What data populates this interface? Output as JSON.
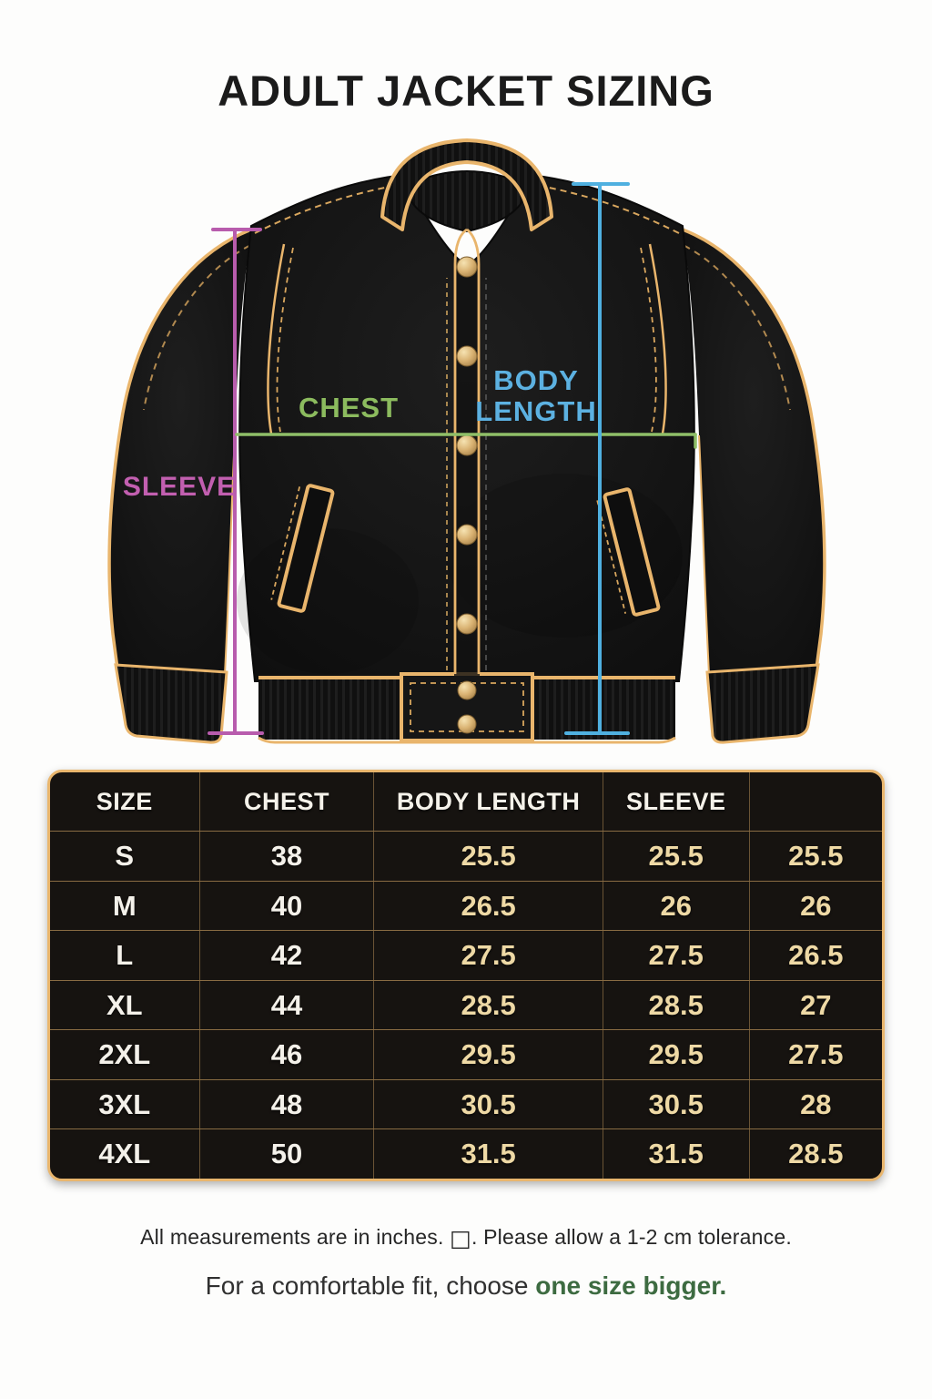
{
  "title": "ADULT JACKET SIZING",
  "diagram": {
    "labels": {
      "chest": "CHEST",
      "body_length_line1": "BODY",
      "body_length_line2": "LENGTH",
      "sleeve": "SLEEVE"
    },
    "colors": {
      "chest_line": "#8fbf68",
      "chest_label": "#8cbb5e",
      "body_length_line": "#4fb0e0",
      "body_length_label": "#5cb1e1",
      "sleeve_line": "#b85cad",
      "sleeve_label": "#c25fb0",
      "jacket": "#151515",
      "piping_gold": "#e9b56c"
    }
  },
  "table": {
    "headers": [
      "SIZE",
      "CHEST",
      "BODY LENGTH",
      "SLEEVE",
      ""
    ],
    "rows": [
      {
        "cells": [
          "S",
          "38",
          "25.5",
          "25.5",
          "25.5"
        ]
      },
      {
        "cells": [
          "M",
          "40",
          "26.5",
          "26",
          "26"
        ]
      },
      {
        "cells": [
          "L",
          "42",
          "27.5",
          "27.5",
          "26.5"
        ]
      },
      {
        "cells": [
          "XL",
          "44",
          "28.5",
          "28.5",
          "27"
        ]
      },
      {
        "cells": [
          "2XL",
          "46",
          "29.5",
          "29.5",
          "27.5"
        ]
      },
      {
        "cells": [
          "3XL",
          "48",
          "30.5",
          "30.5",
          "28"
        ]
      },
      {
        "cells": [
          "4XL",
          "50",
          "31.5",
          "31.5",
          "28.5"
        ]
      }
    ],
    "colors": {
      "border_gold": "#e9b66d",
      "background": "#161310",
      "value_white": "#f4f1ea",
      "value_cream": "#eed9a5"
    }
  },
  "footer": {
    "note_prefix": "All measurements are in inches. ",
    "note_box": "□",
    "note_suffix": ". Please allow a 1-2 cm tolerance.",
    "fit_prefix": "For a comfortable fit, choose ",
    "fit_emphasis": "one size bigger.",
    "emphasis_color": "#3d6b41"
  }
}
